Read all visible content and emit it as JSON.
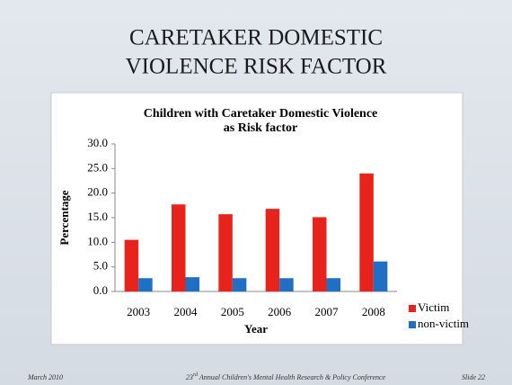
{
  "slide_title": [
    "CARETAKER DOMESTIC",
    "VIOLENCE RISK FACTOR"
  ],
  "footer": {
    "date": "March 2010",
    "conference_number": "23",
    "conference_suffix": "rd",
    "conference_text": " Annual Children's Mental Health Research & Policy Conference",
    "slide": "Slide 22"
  },
  "chart_data": {
    "type": "bar",
    "title": [
      "Children with Caretaker  Domestic Violence",
      "as Risk factor"
    ],
    "x_label": "Year",
    "y_label": "Percentage",
    "categories": [
      "2003",
      "2004",
      "2005",
      "2006",
      "2007",
      "2008"
    ],
    "series": [
      {
        "name": "Victim",
        "color": "#e8231c",
        "values": [
          10.5,
          17.7,
          15.7,
          16.8,
          15.1,
          24.0
        ]
      },
      {
        "name": "non-victim",
        "color": "#1f6fc5",
        "values": [
          2.7,
          2.9,
          2.7,
          2.7,
          2.7,
          6.1
        ]
      }
    ],
    "ylim": [
      0,
      30
    ],
    "yticks": [
      {
        "value": 0,
        "label": "0.0"
      },
      {
        "value": 5,
        "label": "5.0"
      },
      {
        "value": 10,
        "label": "10.0"
      },
      {
        "value": 15,
        "label": "15.0"
      },
      {
        "value": 20,
        "label": "20.0"
      },
      {
        "value": 25,
        "label": "25.0"
      },
      {
        "value": 30,
        "label": "30.0"
      }
    ],
    "grid": false,
    "legend": "right"
  }
}
